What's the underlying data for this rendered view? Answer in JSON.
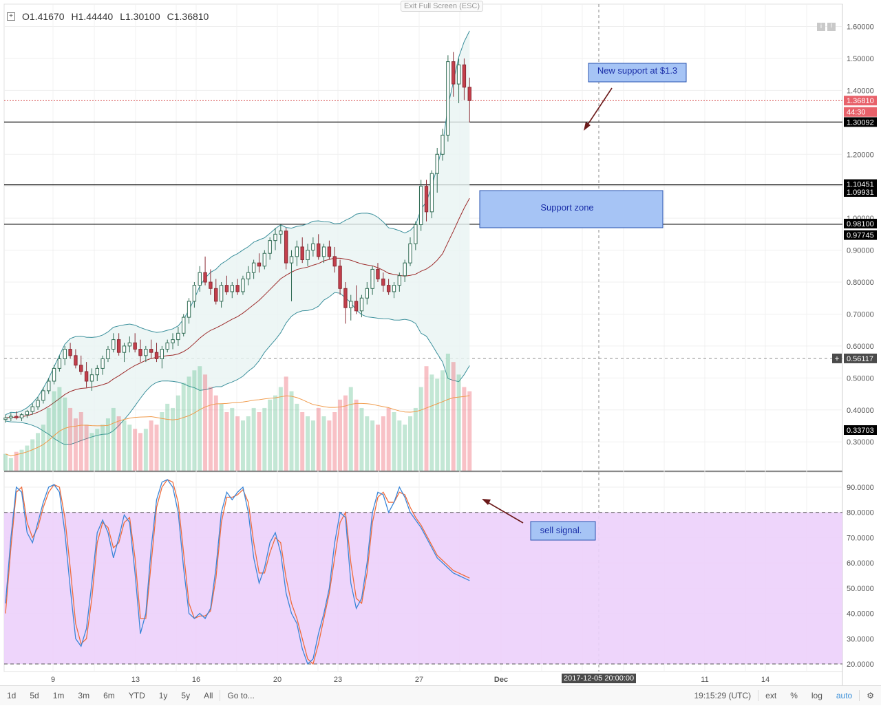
{
  "ohlc": {
    "o": "O1.41670",
    "h": "H1.44440",
    "l": "L1.30100",
    "c": "C1.36810"
  },
  "exit_fullscreen": "Exit Full Screen (ESC)",
  "toolbar": {
    "ranges": [
      "1d",
      "5d",
      "1m",
      "3m",
      "6m",
      "YTD",
      "1y",
      "5y",
      "All"
    ],
    "goto": "Go to...",
    "clock": "19:15:29 (UTC)",
    "options": [
      "ext",
      "%",
      "log",
      "auto"
    ]
  },
  "crosshair_time": "2017-12-05 20:00:00",
  "colors": {
    "up": "#53b987",
    "down": "#eb4d5c",
    "bb_fill": "#e8f4f2",
    "bb_line": "#3a8f9b",
    "ma": "#9c2a2a",
    "stoch_fill": "#ecd0fb",
    "k": "#3a86d8",
    "d": "#ef6c3c",
    "vol_ma": "#f09a4a"
  },
  "chart_data": [
    {
      "type": "candlestick",
      "title": "",
      "x_ticks": [
        "9",
        "13",
        "16",
        "20",
        "23",
        "27",
        "Dec",
        "11",
        "14"
      ],
      "y_ticks": [
        "0.30000",
        "0.40000",
        "0.50000",
        "0.60000",
        "0.70000",
        "0.80000",
        "0.90000",
        "1.00000",
        "1.10000",
        "1.20000",
        "1.30000",
        "1.40000",
        "1.50000",
        "1.60000"
      ],
      "ylim": [
        0.21,
        1.67
      ],
      "price_labels": [
        {
          "text": "1.36810",
          "value": 1.3681,
          "style": "current"
        },
        {
          "text": "44:30",
          "value": 1.3325,
          "style": "timer"
        },
        {
          "text": "1.30092",
          "value": 1.30092,
          "style": "level"
        },
        {
          "text": "1.10451",
          "value": 1.10451,
          "style": "level"
        },
        {
          "text": "1.09931",
          "value": 1.09931,
          "style": "level"
        },
        {
          "text": "0.98100",
          "value": 0.981,
          "style": "level"
        },
        {
          "text": "0.97745",
          "value": 0.97745,
          "style": "level"
        },
        {
          "text": "0.56117",
          "value": 0.56117,
          "style": "crosshair"
        },
        {
          "text": "0.33703",
          "value": 0.33703,
          "style": "level"
        }
      ],
      "horizontal_lines": [
        1.30092,
        1.10451,
        0.981
      ],
      "current_price": 1.3681,
      "crosshair_price": 0.56117,
      "annotations": [
        {
          "text": "New support at $1.3"
        },
        {
          "text": "Support zone"
        }
      ],
      "candles": [
        [
          0.37,
          0.385,
          0.36,
          0.375
        ],
        [
          0.375,
          0.39,
          0.365,
          0.38
        ],
        [
          0.38,
          0.395,
          0.37,
          0.375
        ],
        [
          0.375,
          0.39,
          0.365,
          0.385
        ],
        [
          0.385,
          0.4,
          0.375,
          0.395
        ],
        [
          0.395,
          0.42,
          0.385,
          0.41
        ],
        [
          0.41,
          0.44,
          0.4,
          0.43
        ],
        [
          0.43,
          0.47,
          0.42,
          0.46
        ],
        [
          0.46,
          0.5,
          0.45,
          0.49
        ],
        [
          0.49,
          0.54,
          0.48,
          0.53
        ],
        [
          0.53,
          0.57,
          0.52,
          0.56
        ],
        [
          0.56,
          0.6,
          0.54,
          0.59
        ],
        [
          0.59,
          0.61,
          0.56,
          0.57
        ],
        [
          0.57,
          0.59,
          0.53,
          0.54
        ],
        [
          0.54,
          0.57,
          0.51,
          0.52
        ],
        [
          0.52,
          0.55,
          0.47,
          0.49
        ],
        [
          0.49,
          0.53,
          0.46,
          0.51
        ],
        [
          0.51,
          0.54,
          0.49,
          0.53
        ],
        [
          0.53,
          0.57,
          0.51,
          0.56
        ],
        [
          0.56,
          0.6,
          0.55,
          0.59
        ],
        [
          0.59,
          0.64,
          0.58,
          0.62
        ],
        [
          0.62,
          0.64,
          0.57,
          0.58
        ],
        [
          0.58,
          0.61,
          0.55,
          0.6
        ],
        [
          0.6,
          0.63,
          0.58,
          0.61
        ],
        [
          0.61,
          0.64,
          0.58,
          0.59
        ],
        [
          0.59,
          0.62,
          0.55,
          0.57
        ],
        [
          0.57,
          0.6,
          0.55,
          0.59
        ],
        [
          0.59,
          0.62,
          0.56,
          0.58
        ],
        [
          0.58,
          0.61,
          0.55,
          0.56
        ],
        [
          0.56,
          0.6,
          0.53,
          0.59
        ],
        [
          0.59,
          0.62,
          0.58,
          0.61
        ],
        [
          0.61,
          0.64,
          0.59,
          0.62
        ],
        [
          0.62,
          0.66,
          0.6,
          0.64
        ],
        [
          0.64,
          0.7,
          0.63,
          0.69
        ],
        [
          0.69,
          0.75,
          0.67,
          0.74
        ],
        [
          0.74,
          0.8,
          0.72,
          0.79
        ],
        [
          0.79,
          0.85,
          0.77,
          0.83
        ],
        [
          0.83,
          0.88,
          0.79,
          0.8
        ],
        [
          0.8,
          0.84,
          0.76,
          0.78
        ],
        [
          0.78,
          0.81,
          0.73,
          0.74
        ],
        [
          0.74,
          0.8,
          0.72,
          0.79
        ],
        [
          0.79,
          0.82,
          0.76,
          0.77
        ],
        [
          0.77,
          0.8,
          0.75,
          0.79
        ],
        [
          0.79,
          0.81,
          0.76,
          0.77
        ],
        [
          0.77,
          0.82,
          0.76,
          0.81
        ],
        [
          0.81,
          0.85,
          0.79,
          0.83
        ],
        [
          0.83,
          0.87,
          0.81,
          0.86
        ],
        [
          0.86,
          0.89,
          0.83,
          0.85
        ],
        [
          0.85,
          0.9,
          0.84,
          0.89
        ],
        [
          0.89,
          0.94,
          0.87,
          0.93
        ],
        [
          0.93,
          0.97,
          0.9,
          0.95
        ],
        [
          0.95,
          0.98,
          0.92,
          0.96
        ],
        [
          0.96,
          0.97,
          0.84,
          0.86
        ],
        [
          0.86,
          0.9,
          0.74,
          0.88
        ],
        [
          0.88,
          0.93,
          0.85,
          0.91
        ],
        [
          0.91,
          0.94,
          0.86,
          0.87
        ],
        [
          0.87,
          0.92,
          0.85,
          0.9
        ],
        [
          0.9,
          0.94,
          0.88,
          0.92
        ],
        [
          0.92,
          0.95,
          0.87,
          0.88
        ],
        [
          0.88,
          0.92,
          0.86,
          0.91
        ],
        [
          0.91,
          0.93,
          0.87,
          0.88
        ],
        [
          0.88,
          0.91,
          0.83,
          0.85
        ],
        [
          0.85,
          0.87,
          0.76,
          0.78
        ],
        [
          0.78,
          0.8,
          0.67,
          0.72
        ],
        [
          0.72,
          0.76,
          0.68,
          0.74
        ],
        [
          0.74,
          0.79,
          0.7,
          0.71
        ],
        [
          0.71,
          0.76,
          0.69,
          0.75
        ],
        [
          0.75,
          0.8,
          0.73,
          0.78
        ],
        [
          0.78,
          0.85,
          0.76,
          0.84
        ],
        [
          0.84,
          0.86,
          0.8,
          0.81
        ],
        [
          0.81,
          0.83,
          0.77,
          0.79
        ],
        [
          0.79,
          0.81,
          0.76,
          0.77
        ],
        [
          0.77,
          0.8,
          0.75,
          0.79
        ],
        [
          0.79,
          0.83,
          0.77,
          0.82
        ],
        [
          0.82,
          0.87,
          0.8,
          0.86
        ],
        [
          0.86,
          0.94,
          0.85,
          0.92
        ],
        [
          0.92,
          0.99,
          0.9,
          0.98
        ],
        [
          0.98,
          1.12,
          0.96,
          1.1
        ],
        [
          1.1,
          1.12,
          0.99,
          1.02
        ],
        [
          1.02,
          1.15,
          1.0,
          1.14
        ],
        [
          1.14,
          1.22,
          1.08,
          1.2
        ],
        [
          1.2,
          1.28,
          1.18,
          1.26
        ],
        [
          1.26,
          1.51,
          1.24,
          1.49
        ],
        [
          1.49,
          1.52,
          1.38,
          1.42
        ],
        [
          1.42,
          1.5,
          1.36,
          1.48
        ],
        [
          1.48,
          1.5,
          1.37,
          1.41
        ],
        [
          1.41,
          1.44,
          1.3,
          1.368
        ]
      ],
      "volume": [
        0.08,
        0.06,
        0.09,
        0.1,
        0.12,
        0.15,
        0.18,
        0.22,
        0.3,
        0.38,
        0.4,
        0.35,
        0.3,
        0.25,
        0.28,
        0.22,
        0.18,
        0.2,
        0.22,
        0.25,
        0.3,
        0.26,
        0.24,
        0.22,
        0.2,
        0.18,
        0.2,
        0.24,
        0.22,
        0.28,
        0.32,
        0.3,
        0.36,
        0.42,
        0.45,
        0.48,
        0.5,
        0.46,
        0.4,
        0.36,
        0.32,
        0.28,
        0.3,
        0.26,
        0.24,
        0.26,
        0.3,
        0.28,
        0.3,
        0.34,
        0.36,
        0.4,
        0.45,
        0.38,
        0.32,
        0.28,
        0.26,
        0.24,
        0.3,
        0.26,
        0.24,
        0.28,
        0.34,
        0.36,
        0.4,
        0.34,
        0.3,
        0.26,
        0.24,
        0.22,
        0.26,
        0.3,
        0.28,
        0.24,
        0.22,
        0.26,
        0.3,
        0.4,
        0.5,
        0.46,
        0.44,
        0.48,
        0.56,
        0.52,
        0.46,
        0.4,
        0.38
      ],
      "volume_ma_last": 0.37
    },
    {
      "type": "line",
      "title": "",
      "y_ticks": [
        "20.0000",
        "30.0000",
        "40.0000",
        "50.0000",
        "60.0000",
        "70.0000",
        "80.0000",
        "90.0000"
      ],
      "ylim": [
        17,
        96
      ],
      "bands": [
        20,
        80
      ],
      "annotations": [
        {
          "text": "sell signal."
        }
      ],
      "series": [
        {
          "values": [
            44,
            70,
            90,
            88,
            72,
            68,
            76,
            84,
            90,
            91,
            88,
            72,
            50,
            30,
            27,
            34,
            52,
            72,
            77,
            72,
            62,
            70,
            79,
            76,
            56,
            32,
            40,
            66,
            85,
            92,
            93,
            90,
            80,
            58,
            40,
            38,
            40,
            38,
            42,
            58,
            80,
            88,
            85,
            88,
            90,
            80,
            62,
            52,
            58,
            68,
            72,
            64,
            48,
            40,
            36,
            26,
            20,
            22,
            32,
            40,
            50,
            68,
            80,
            78,
            52,
            42,
            46,
            60,
            80,
            88,
            87,
            80,
            84,
            90,
            86,
            80,
            77,
            74,
            70,
            66,
            62,
            60,
            58,
            56,
            55,
            54,
            53
          ]
        },
        {
          "values": [
            40,
            66,
            88,
            90,
            76,
            70,
            74,
            82,
            88,
            91,
            90,
            78,
            58,
            36,
            28,
            30,
            46,
            68,
            76,
            74,
            66,
            68,
            76,
            78,
            62,
            38,
            38,
            60,
            82,
            90,
            93,
            92,
            84,
            64,
            44,
            38,
            39,
            39,
            41,
            54,
            76,
            86,
            86,
            87,
            89,
            84,
            68,
            56,
            56,
            64,
            70,
            68,
            54,
            44,
            38,
            30,
            22,
            20,
            28,
            38,
            48,
            62,
            76,
            80,
            60,
            46,
            44,
            56,
            76,
            86,
            88,
            84,
            84,
            88,
            87,
            82,
            78,
            75,
            71,
            67,
            63,
            61,
            59,
            57,
            56,
            55,
            54
          ]
        }
      ]
    }
  ]
}
